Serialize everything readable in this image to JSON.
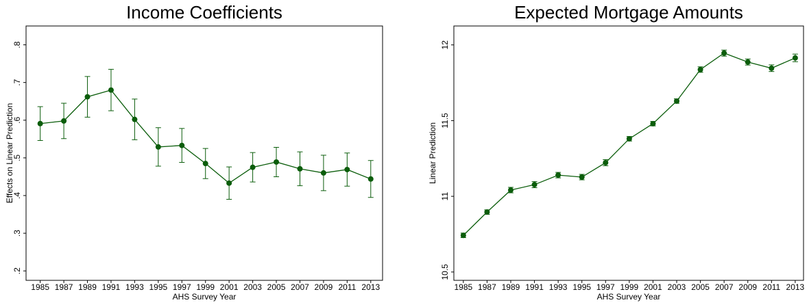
{
  "chart_data": [
    {
      "type": "line",
      "title": "Income Coefficients",
      "xlabel": "AHS Survey Year",
      "ylabel": "Effects on Linear Prediction",
      "x": [
        1985,
        1987,
        1989,
        1991,
        1993,
        1995,
        1997,
        1999,
        2001,
        2003,
        2005,
        2007,
        2009,
        2011,
        2013
      ],
      "series": [
        {
          "color": "#0b5d0b",
          "values": [
            0.591,
            0.598,
            0.662,
            0.68,
            0.602,
            0.529,
            0.533,
            0.485,
            0.433,
            0.475,
            0.489,
            0.471,
            0.46,
            0.469,
            0.444
          ],
          "errors": [
            0.045,
            0.047,
            0.054,
            0.055,
            0.054,
            0.051,
            0.045,
            0.04,
            0.043,
            0.039,
            0.039,
            0.045,
            0.047,
            0.044,
            0.049
          ]
        }
      ],
      "xlim": [
        1983.8,
        2014
      ],
      "xticks": [
        1985,
        1987,
        1989,
        1991,
        1993,
        1995,
        1997,
        1999,
        2001,
        2003,
        2005,
        2007,
        2009,
        2011,
        2013
      ],
      "ylim": [
        0.175,
        0.85
      ],
      "yticks": [
        {
          "value": 0.2,
          "label": ".2"
        },
        {
          "value": 0.3,
          "label": ".3"
        },
        {
          "value": 0.4,
          "label": ".4"
        },
        {
          "value": 0.5,
          "label": ".5"
        },
        {
          "value": 0.6,
          "label": ".6"
        },
        {
          "value": 0.7,
          "label": ".7"
        },
        {
          "value": 0.8,
          "label": ".8"
        }
      ]
    },
    {
      "type": "line",
      "title": "Expected Mortgage Amounts",
      "xlabel": "AHS Survey Year",
      "ylabel": "Linear Prediction",
      "x": [
        1985,
        1987,
        1989,
        1991,
        1993,
        1995,
        1997,
        1999,
        2001,
        2003,
        2005,
        2007,
        2009,
        2011,
        2013
      ],
      "series": [
        {
          "color": "#0b5d0b",
          "values": [
            10.742,
            10.896,
            11.041,
            11.077,
            11.14,
            11.127,
            11.222,
            11.38,
            11.48,
            11.629,
            11.837,
            11.946,
            11.887,
            11.846,
            11.914
          ],
          "errors": [
            0.015,
            0.015,
            0.018,
            0.02,
            0.018,
            0.018,
            0.02,
            0.015,
            0.015,
            0.015,
            0.018,
            0.02,
            0.02,
            0.022,
            0.025
          ]
        }
      ],
      "xlim": [
        1984.2,
        2013.7
      ],
      "xticks": [
        1985,
        1987,
        1989,
        1991,
        1993,
        1995,
        1997,
        1999,
        2001,
        2003,
        2005,
        2007,
        2009,
        2011,
        2013
      ],
      "ylim": [
        10.445,
        12.125
      ],
      "yticks": [
        10.5,
        11,
        11.5,
        12
      ]
    }
  ]
}
